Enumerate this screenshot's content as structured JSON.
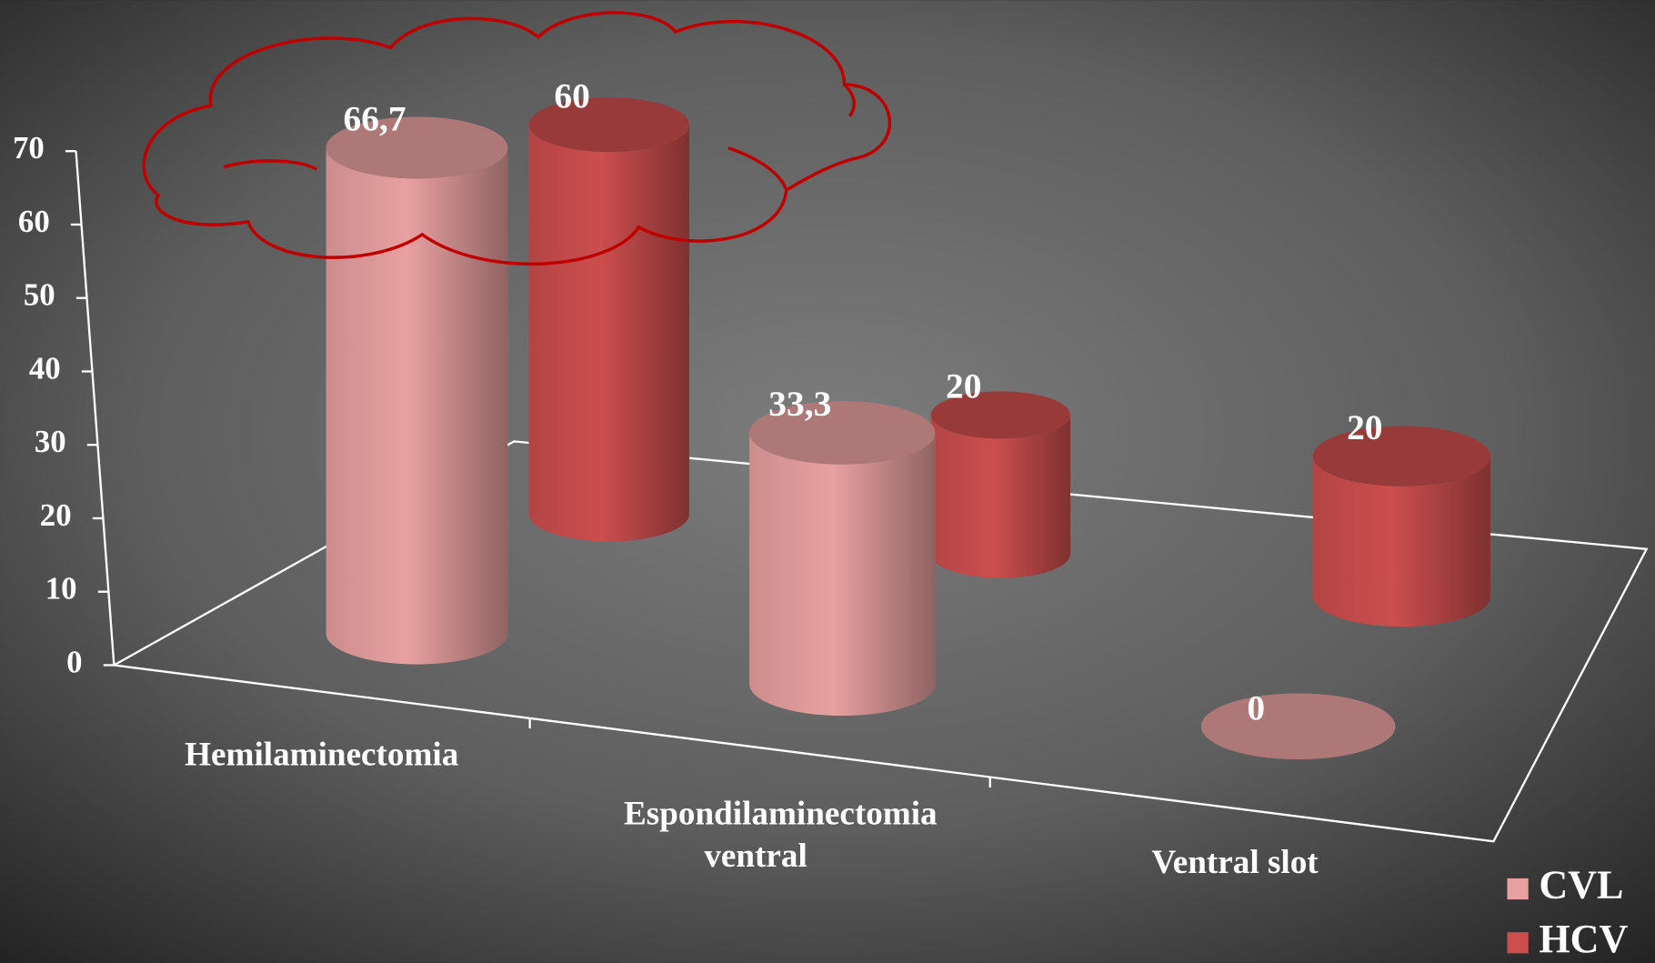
{
  "chart_data": {
    "type": "cylinder",
    "categories": [
      "Hemilaminectomia",
      "Espondilaminectomia ventral",
      "Ventral slot"
    ],
    "series": [
      {
        "name": "CVL",
        "color": "#e8a0a0",
        "values": [
          66.7,
          33.3,
          0
        ],
        "value_labels": [
          "66,7",
          "33,3",
          "0"
        ]
      },
      {
        "name": "HCV",
        "color": "#cc4e4e",
        "values": [
          60,
          20,
          20
        ],
        "value_labels": [
          "60",
          "20",
          "20"
        ]
      }
    ],
    "ylim": [
      0,
      70
    ],
    "yticks": [
      0,
      10,
      20,
      30,
      40,
      50,
      60,
      70
    ],
    "grid": false
  }
}
